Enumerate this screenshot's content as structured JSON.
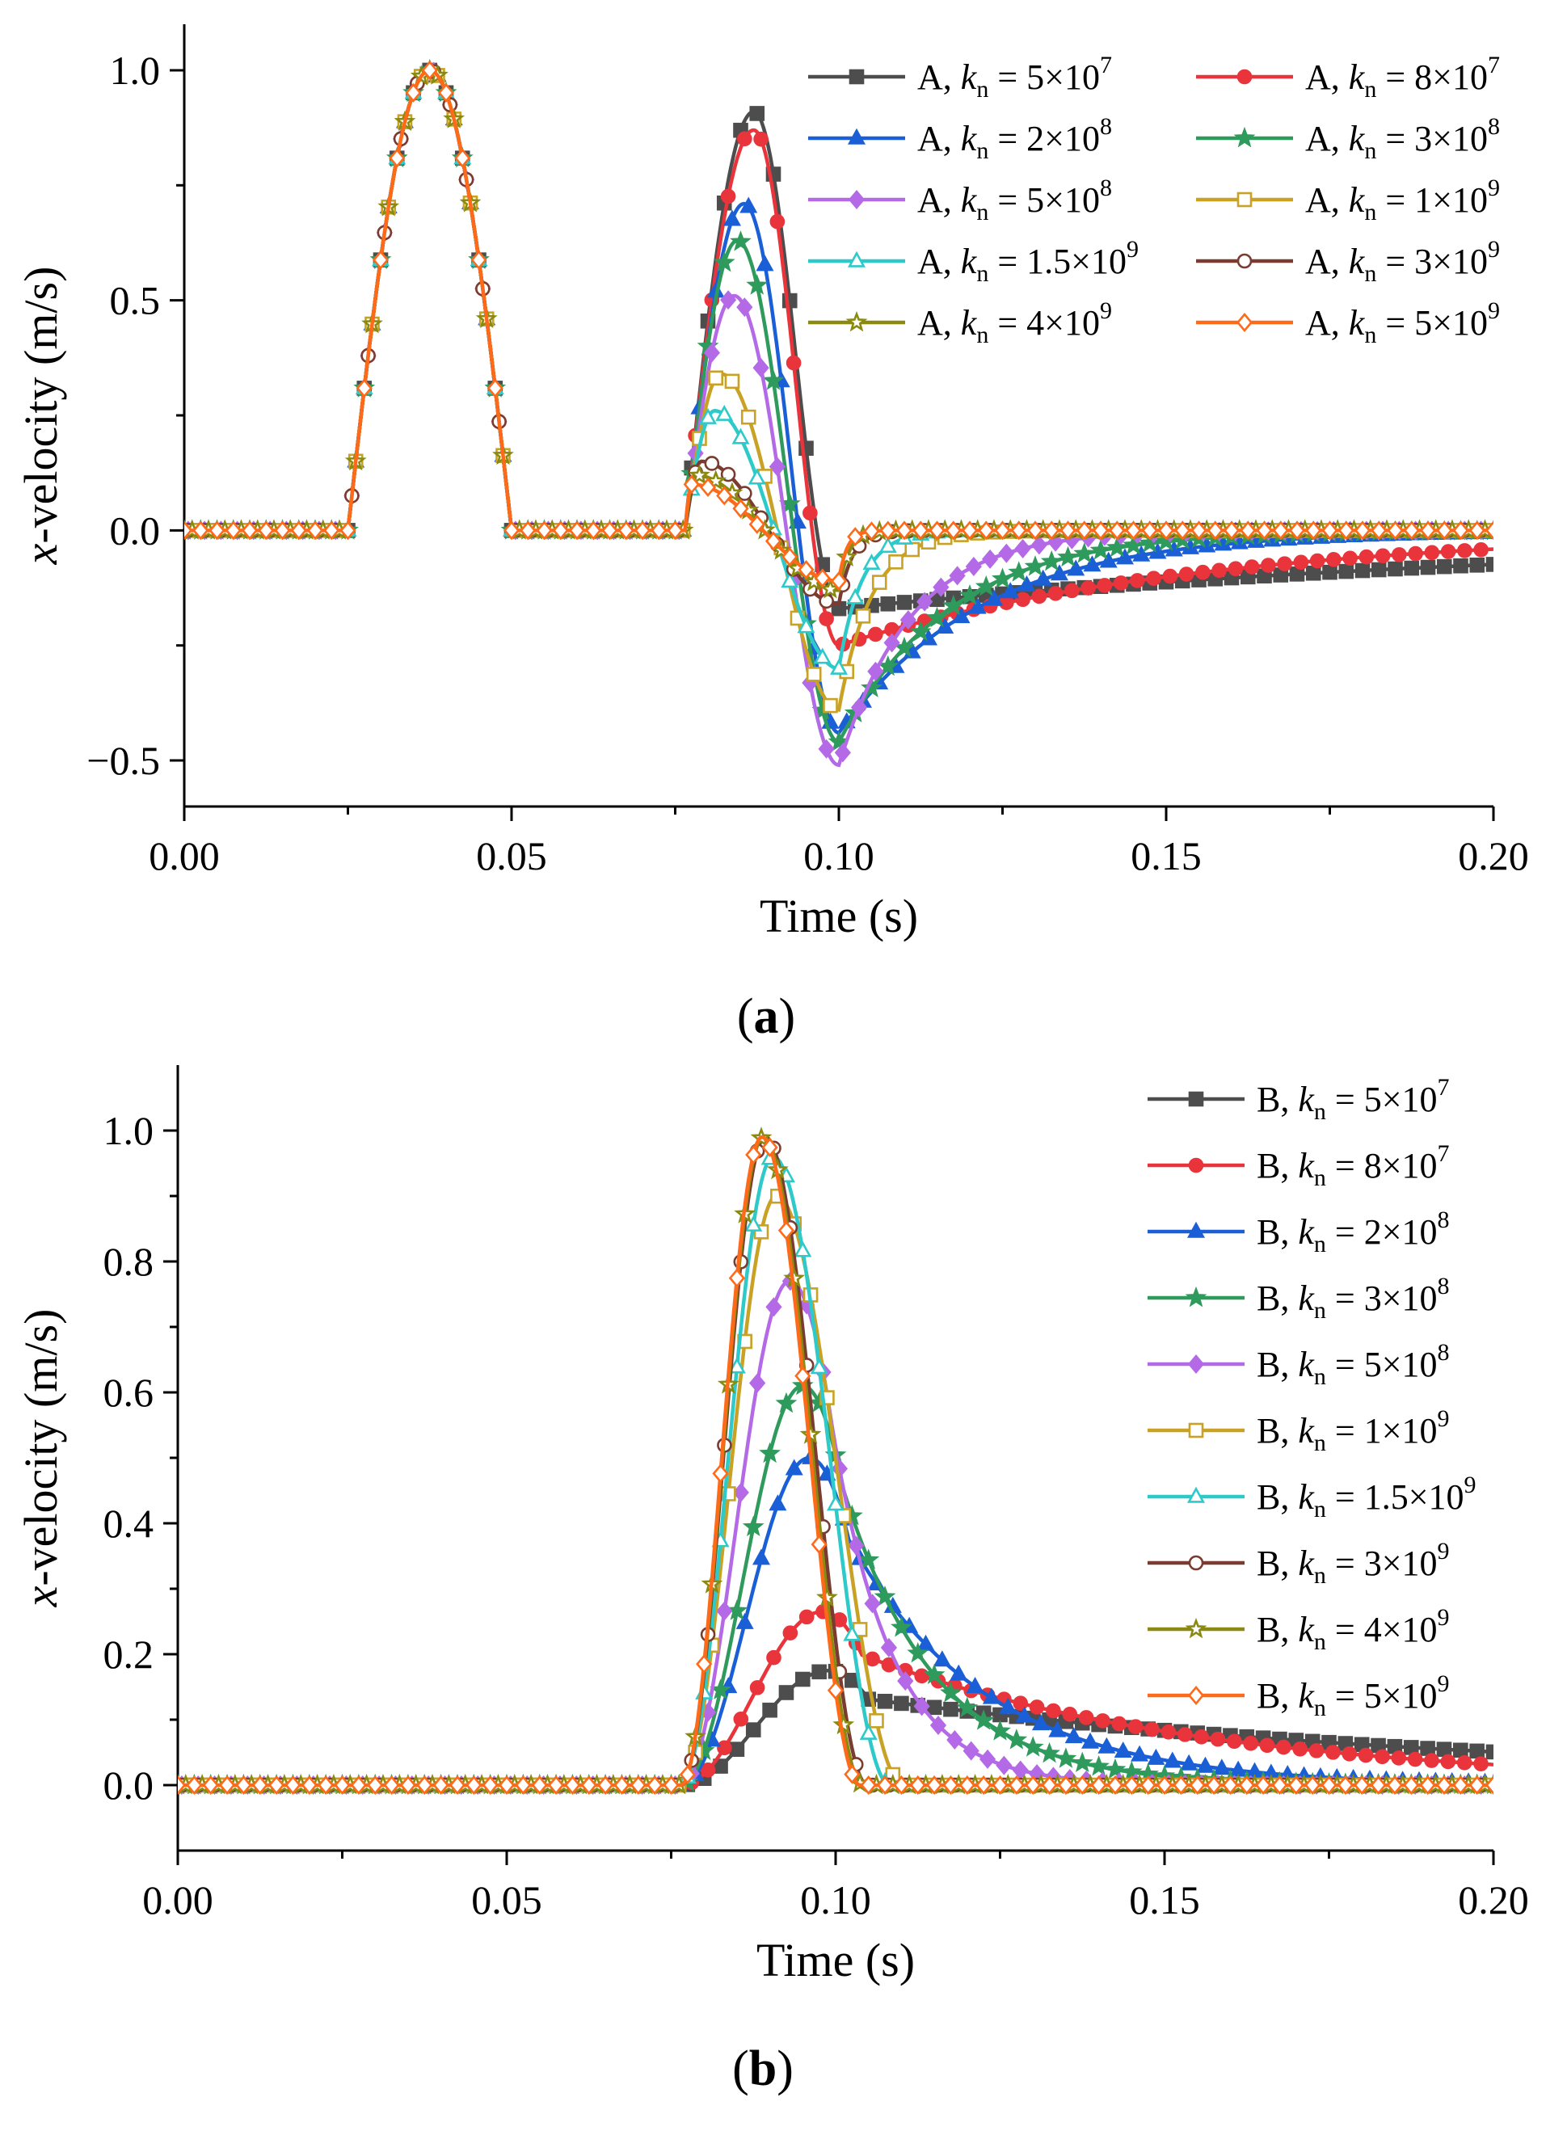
{
  "colors": {
    "A1": "#4d4d4d",
    "A2": "#e8343a",
    "A3": "#1a5fd6",
    "A4": "#2e9a5c",
    "A5": "#b46ae6",
    "A6": "#c9a225",
    "A7": "#2ec9c9",
    "A8": "#7a3c30",
    "A9": "#8a8a10",
    "A10": "#ff6a1a"
  },
  "chart_data": [
    {
      "type": "line",
      "panel_label": "(a)",
      "panel_letter": "a",
      "xlabel": "Time (s)",
      "ylabel_var": "x",
      "ylabel_rest": "-velocity (m/s)",
      "xlim": [
        0,
        0.2
      ],
      "ylim": [
        -0.6,
        1.1
      ],
      "xticks": [
        0,
        0.05,
        0.1,
        0.15,
        0.2
      ],
      "xtick_labels": [
        "0.00",
        "0.05",
        "0.10",
        "0.15",
        "0.20"
      ],
      "yticks": [
        -0.5,
        0,
        0.5,
        1
      ],
      "ytick_labels": [
        "−0.5",
        "0.0",
        "0.5",
        "1.0"
      ],
      "legend_position": "top-right",
      "legend_columns": 2,
      "series": [
        {
          "pre": "A, ",
          "k": "k",
          "sub": "n",
          "eq": " = 5×10",
          "sup": "7",
          "marker": "square",
          "color_key": "A1",
          "peak": 0.91,
          "tpeak": 0.087,
          "trough": -0.17,
          "tau": 0.12
        },
        {
          "pre": "A, ",
          "k": "k",
          "sub": "n",
          "eq": " = 8×10",
          "sup": "7",
          "marker": "circle",
          "color_key": "A2",
          "peak": 0.87,
          "tpeak": 0.087,
          "trough": -0.25,
          "tau": 0.055
        },
        {
          "pre": "A, ",
          "k": "k",
          "sub": "n",
          "eq": " = 2×10",
          "sup": "8",
          "marker": "triangle",
          "color_key": "A3",
          "peak": 0.71,
          "tpeak": 0.0855,
          "trough": -0.44,
          "tau": 0.022
        },
        {
          "pre": "A, ",
          "k": "k",
          "sub": "n",
          "eq": " = 3×10",
          "sup": "8",
          "marker": "star",
          "color_key": "A4",
          "peak": 0.63,
          "tpeak": 0.0845,
          "trough": -0.46,
          "tau": 0.017
        },
        {
          "pre": "A, ",
          "k": "k",
          "sub": "n",
          "eq": " = 5×10",
          "sup": "8",
          "marker": "diamond",
          "color_key": "A5",
          "peak": 0.51,
          "tpeak": 0.084,
          "trough": -0.51,
          "tau": 0.011
        },
        {
          "pre": "A, ",
          "k": "k",
          "sub": "n",
          "eq": " = 1×10",
          "sup": "9",
          "marker": "square-open",
          "color_key": "A6",
          "peak": 0.34,
          "tpeak": 0.082,
          "trough": -0.39,
          "tau": 0.005
        },
        {
          "pre": "A, ",
          "k": "k",
          "sub": "n",
          "eq": " = 1.5×10",
          "sup": "9",
          "marker": "triangle-open",
          "color_key": "A7",
          "peak": 0.26,
          "tpeak": 0.081,
          "trough": -0.3,
          "tau": 0.0035
        },
        {
          "pre": "A, ",
          "k": "k",
          "sub": "n",
          "eq": " = 3×10",
          "sup": "9",
          "marker": "circle-open",
          "color_key": "A8",
          "peak": 0.15,
          "tpeak": 0.079,
          "trough": -0.16,
          "tau": 0.002
        },
        {
          "pre": "A, ",
          "k": "k",
          "sub": "n",
          "eq": " = 4×10",
          "sup": "9",
          "marker": "star-open",
          "color_key": "A9",
          "peak": 0.12,
          "tpeak": 0.078,
          "trough": -0.13,
          "tau": 0.0015
        },
        {
          "pre": "A, ",
          "k": "k",
          "sub": "n",
          "eq": " = 5×10",
          "sup": "9",
          "marker": "diamond-open",
          "color_key": "A10",
          "peak": 0.1,
          "tpeak": 0.0775,
          "trough": -0.11,
          "tau": 0.0012
        }
      ],
      "input_pulse": {
        "start": 0.025,
        "end": 0.05,
        "amplitude": 1.0
      }
    },
    {
      "type": "line",
      "panel_label": "(b)",
      "panel_letter": "b",
      "xlabel": "Time (s)",
      "ylabel_var": "x",
      "ylabel_rest": "-velocity (m/s)",
      "xlim": [
        0,
        0.2
      ],
      "ylim": [
        -0.1,
        1.1
      ],
      "xticks": [
        0,
        0.05,
        0.1,
        0.15,
        0.2
      ],
      "xtick_labels": [
        "0.00",
        "0.05",
        "0.10",
        "0.15",
        "0.20"
      ],
      "yticks": [
        0,
        0.2,
        0.4,
        0.6,
        0.8,
        1.0
      ],
      "ytick_labels": [
        "0.0",
        "0.2",
        "0.4",
        "0.6",
        "0.8",
        "1.0"
      ],
      "legend_position": "top-right",
      "legend_columns": 1,
      "series": [
        {
          "pre": "B, ",
          "k": "k",
          "sub": "n",
          "eq": " = 5×10",
          "sup": "7",
          "marker": "square",
          "color_key": "A1",
          "peak": 0.175,
          "tpeak": 0.099,
          "tau": 0.1
        },
        {
          "pre": "B, ",
          "k": "k",
          "sub": "n",
          "eq": " = 8×10",
          "sup": "7",
          "marker": "circle",
          "color_key": "A2",
          "peak": 0.265,
          "tpeak": 0.098,
          "tau": 0.052
        },
        {
          "pre": "B, ",
          "k": "k",
          "sub": "n",
          "eq": " = 2×10",
          "sup": "8",
          "marker": "triangle",
          "color_key": "A3",
          "peak": 0.5,
          "tpeak": 0.096,
          "tau": 0.021
        },
        {
          "pre": "B, ",
          "k": "k",
          "sub": "n",
          "eq": " = 3×10",
          "sup": "8",
          "marker": "star",
          "color_key": "A4",
          "peak": 0.61,
          "tpeak": 0.095,
          "tau": 0.014
        },
        {
          "pre": "B, ",
          "k": "k",
          "sub": "n",
          "eq": " = 5×10",
          "sup": "8",
          "marker": "diamond",
          "color_key": "A5",
          "peak": 0.77,
          "tpeak": 0.093,
          "tau": 0.009
        },
        {
          "pre": "B, ",
          "k": "k",
          "sub": "n",
          "eq": " = 1×10",
          "sup": "9",
          "marker": "square-open",
          "color_key": "A6",
          "peak": 0.9,
          "tpeak": 0.091,
          "tau": 0.0045
        },
        {
          "pre": "B, ",
          "k": "k",
          "sub": "n",
          "eq": " = 1.5×10",
          "sup": "9",
          "marker": "triangle-open",
          "color_key": "A7",
          "peak": 0.96,
          "tpeak": 0.0905,
          "tau": 0.0033
        },
        {
          "pre": "B, ",
          "k": "k",
          "sub": "n",
          "eq": " = 3×10",
          "sup": "9",
          "marker": "circle-open",
          "color_key": "A8",
          "peak": 0.99,
          "tpeak": 0.0893,
          "tau": 0.0016
        },
        {
          "pre": "B, ",
          "k": "k",
          "sub": "n",
          "eq": " = 4×10",
          "sup": "9",
          "marker": "star-open",
          "color_key": "A9",
          "peak": 0.99,
          "tpeak": 0.089,
          "tau": 0.0013
        },
        {
          "pre": "B, ",
          "k": "k",
          "sub": "n",
          "eq": " = 5×10",
          "sup": "9",
          "marker": "diamond-open",
          "color_key": "A10",
          "peak": 0.99,
          "tpeak": 0.0888,
          "tau": 0.0011
        }
      ]
    }
  ]
}
